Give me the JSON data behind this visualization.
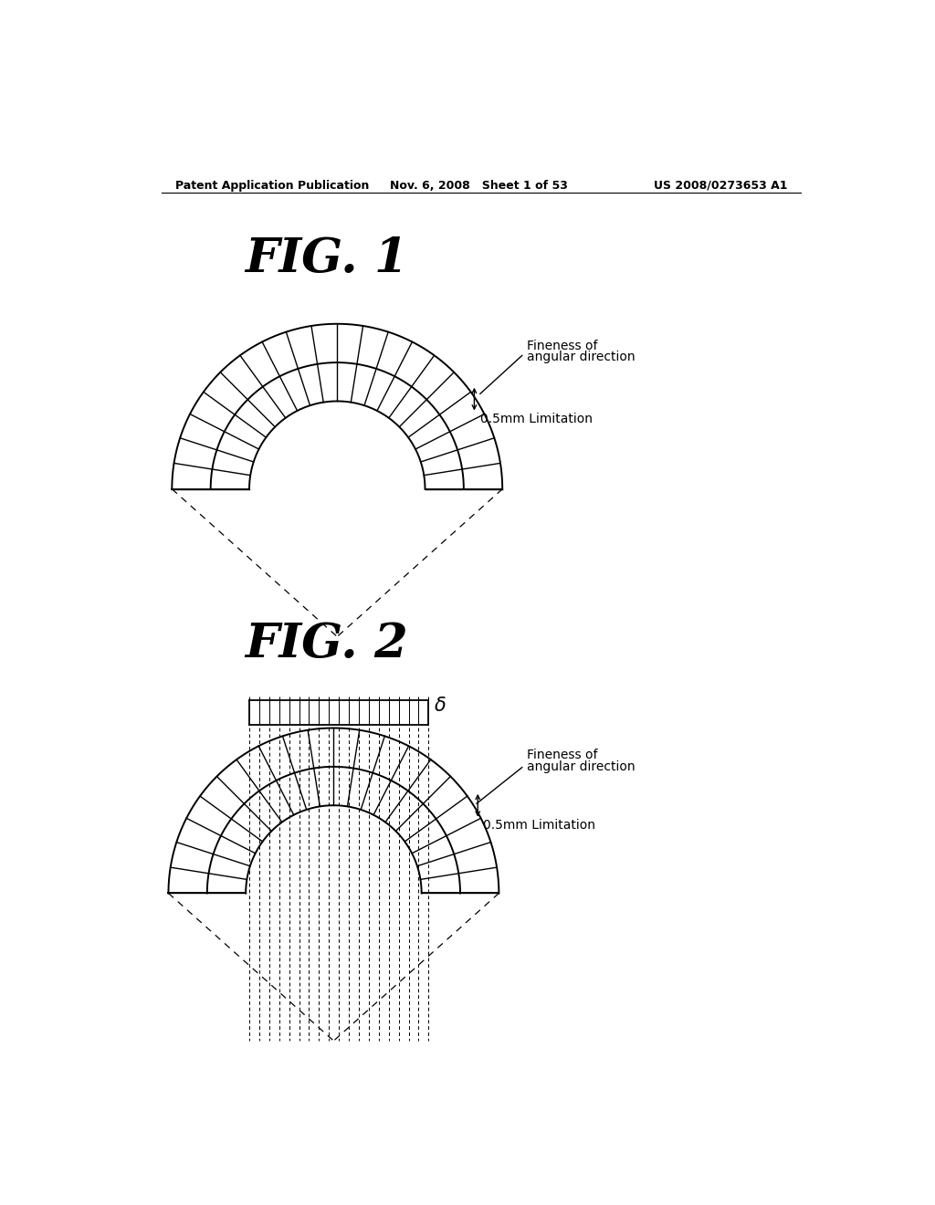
{
  "header_left": "Patent Application Publication",
  "header_mid": "Nov. 6, 2008   Sheet 1 of 53",
  "header_right": "US 2008/0273653 A1",
  "fig1_title": "FIG. 1",
  "fig2_title": "FIG. 2",
  "fig1_label1": "Fineness of",
  "fig1_label1b": "angular direction",
  "fig1_label2": "0.5mm Limitation",
  "fig2_label1": "Fineness of",
  "fig2_label1b": "angular direction",
  "fig2_label2": "0.5mm Limitation",
  "delta_label": "δ",
  "bg_color": "#ffffff",
  "line_color": "#000000"
}
